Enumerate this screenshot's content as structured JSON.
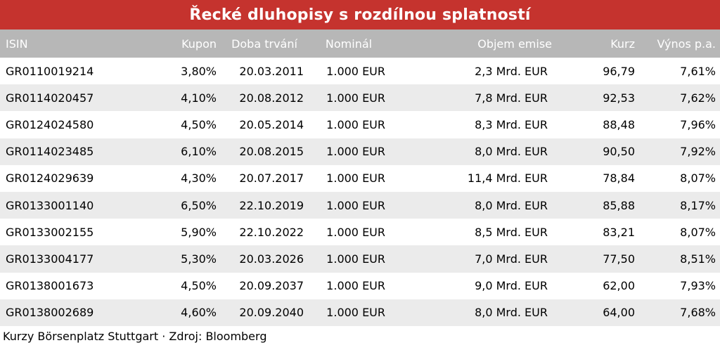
{
  "chart_data": {
    "type": "table",
    "title": "Řecké dluhopisy s rozdílnou splatností",
    "columns": [
      "ISIN",
      "Kupon",
      "Doba trvání",
      "Nominál",
      "Objem emise",
      "Kurz",
      "Výnos p.a."
    ],
    "rows": [
      [
        "GR0110019214",
        "3,80%",
        "20.03.2011",
        "1.000 EUR",
        "2,3 Mrd. EUR",
        "96,79",
        "7,61%"
      ],
      [
        "GR0114020457",
        "4,10%",
        "20.08.2012",
        "1.000 EUR",
        "7,8 Mrd. EUR",
        "92,53",
        "7,62%"
      ],
      [
        "GR0124024580",
        "4,50%",
        "20.05.2014",
        "1.000 EUR",
        "8,3 Mrd. EUR",
        "88,48",
        "7,96%"
      ],
      [
        "GR0114023485",
        "6,10%",
        "20.08.2015",
        "1.000 EUR",
        "8,0 Mrd. EUR",
        "90,50",
        "7,92%"
      ],
      [
        "GR0124029639",
        "4,30%",
        "20.07.2017",
        "1.000 EUR",
        "11,4 Mrd. EUR",
        "78,84",
        "8,07%"
      ],
      [
        "GR0133001140",
        "6,50%",
        "22.10.2019",
        "1.000 EUR",
        "8,0 Mrd. EUR",
        "85,88",
        "8,17%"
      ],
      [
        "GR0133002155",
        "5,90%",
        "22.10.2022",
        "1.000 EUR",
        "8,5 Mrd. EUR",
        "83,21",
        "8,07%"
      ],
      [
        "GR0133004177",
        "5,30%",
        "20.03.2026",
        "1.000 EUR",
        "7,0 Mrd. EUR",
        "77,50",
        "8,51%"
      ],
      [
        "GR0138001673",
        "4,50%",
        "20.09.2037",
        "1.000 EUR",
        "9,0 Mrd. EUR",
        "62,00",
        "7,93%"
      ],
      [
        "GR0138002689",
        "4,60%",
        "20.09.2040",
        "1.000 EUR",
        "8,0 Mrd. EUR",
        "64,00",
        "7,68%"
      ]
    ],
    "footnote": "Kurzy Börsenplatz Stuttgart · Zdroj: Bloomberg"
  },
  "colors": {
    "title_bar": "#c5332e",
    "header_bar": "#b7b7b7",
    "row_alt": "#ebebeb"
  }
}
